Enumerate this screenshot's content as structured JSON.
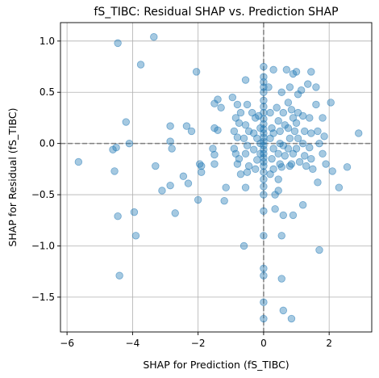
{
  "chart_data": {
    "type": "scatter",
    "title": "fS_TIBC: Residual SHAP vs. Prediction SHAP",
    "xlabel": "SHAP for Prediction (fS_TIBC)",
    "ylabel": "SHAP for Residual (fS_TIBC)",
    "xlim": [
      -6.2,
      3.3
    ],
    "ylim": [
      -1.84,
      1.18
    ],
    "xticks": [
      -6,
      -4,
      -2,
      0,
      2
    ],
    "yticks": [
      -1.5,
      -1.0,
      -0.5,
      0.0,
      0.5,
      1.0
    ],
    "xtick_labels": [
      "−6",
      "−4",
      "−2",
      "0",
      "2"
    ],
    "ytick_labels": [
      "−1.5",
      "−1.0",
      "−0.5",
      "0.0",
      "0.5",
      "1.0"
    ],
    "grid": true,
    "reference_lines": {
      "x": 0,
      "y": 0,
      "style": "dashed",
      "color": "#7f7f7f"
    },
    "marker_color": "#1f77b4",
    "marker_alpha": 0.4,
    "points": [
      [
        -5.65,
        -0.18
      ],
      [
        -4.45,
        0.98
      ],
      [
        -3.35,
        1.04
      ],
      [
        -3.75,
        0.77
      ],
      [
        -4.2,
        0.21
      ],
      [
        -4.6,
        -0.06
      ],
      [
        -4.5,
        -0.04
      ],
      [
        -4.1,
        0.0
      ],
      [
        -4.55,
        -0.27
      ],
      [
        -4.45,
        -0.71
      ],
      [
        -3.95,
        -0.67
      ],
      [
        -3.9,
        -0.9
      ],
      [
        -4.4,
        -1.29
      ],
      [
        -3.3,
        -0.22
      ],
      [
        -3.1,
        -0.46
      ],
      [
        -2.85,
        0.17
      ],
      [
        -2.85,
        0.02
      ],
      [
        -2.8,
        -0.05
      ],
      [
        -2.85,
        -0.41
      ],
      [
        -2.7,
        -0.68
      ],
      [
        -2.45,
        -0.32
      ],
      [
        -2.35,
        0.17
      ],
      [
        -2.2,
        0.12
      ],
      [
        -2.3,
        -0.39
      ],
      [
        -2.05,
        0.7
      ],
      [
        -2.0,
        -0.55
      ],
      [
        -1.95,
        -0.2
      ],
      [
        -1.9,
        -0.22
      ],
      [
        -1.9,
        -0.28
      ],
      [
        -1.5,
        0.39
      ],
      [
        -1.4,
        0.43
      ],
      [
        -1.5,
        0.15
      ],
      [
        -1.4,
        0.13
      ],
      [
        -1.55,
        -0.05
      ],
      [
        -1.5,
        -0.11
      ],
      [
        -1.5,
        -0.2
      ],
      [
        -1.3,
        0.35
      ],
      [
        -1.15,
        -0.43
      ],
      [
        -1.2,
        -0.56
      ],
      [
        -0.95,
        0.45
      ],
      [
        -0.8,
        0.38
      ],
      [
        -0.7,
        0.3
      ],
      [
        -0.85,
        0.25
      ],
      [
        -0.75,
        0.2
      ],
      [
        -0.9,
        0.12
      ],
      [
        -0.8,
        0.06
      ],
      [
        -0.9,
        -0.05
      ],
      [
        -0.85,
        -0.1
      ],
      [
        -0.75,
        -0.15
      ],
      [
        -0.8,
        -0.2
      ],
      [
        -0.7,
        -0.3
      ],
      [
        -0.55,
        0.62
      ],
      [
        -0.5,
        0.38
      ],
      [
        -0.55,
        0.18
      ],
      [
        -0.45,
        0.12
      ],
      [
        -0.6,
        0.05
      ],
      [
        -0.5,
        -0.02
      ],
      [
        -0.55,
        -0.1
      ],
      [
        -0.45,
        -0.22
      ],
      [
        -0.5,
        -0.28
      ],
      [
        -0.55,
        -0.43
      ],
      [
        -0.6,
        -1.0
      ],
      [
        -0.35,
        0.3
      ],
      [
        -0.25,
        0.25
      ],
      [
        -0.3,
        0.1
      ],
      [
        -0.2,
        0.05
      ],
      [
        -0.3,
        -0.06
      ],
      [
        -0.2,
        -0.16
      ],
      [
        -0.25,
        -0.25
      ],
      [
        -0.1,
        0.15
      ],
      [
        -0.1,
        0.0
      ],
      [
        -0.1,
        -0.1
      ],
      [
        0.0,
        0.75
      ],
      [
        0.0,
        0.65
      ],
      [
        0.0,
        0.6
      ],
      [
        0.0,
        0.55
      ],
      [
        0.0,
        0.5
      ],
      [
        0.0,
        0.42
      ],
      [
        0.0,
        0.36
      ],
      [
        0.0,
        0.3
      ],
      [
        0.0,
        0.24
      ],
      [
        0.0,
        0.19
      ],
      [
        0.0,
        0.14
      ],
      [
        0.0,
        0.1
      ],
      [
        0.0,
        0.06
      ],
      [
        0.0,
        0.02
      ],
      [
        0.0,
        -0.02
      ],
      [
        0.0,
        -0.06
      ],
      [
        0.0,
        -0.1
      ],
      [
        0.0,
        -0.14
      ],
      [
        0.0,
        -0.18
      ],
      [
        0.0,
        -0.22
      ],
      [
        0.0,
        -0.28
      ],
      [
        0.0,
        -0.35
      ],
      [
        0.0,
        -0.42
      ],
      [
        0.0,
        -0.5
      ],
      [
        0.0,
        -0.66
      ],
      [
        0.0,
        -0.9
      ],
      [
        0.0,
        -1.22
      ],
      [
        0.0,
        -1.29
      ],
      [
        0.0,
        -1.55
      ],
      [
        0.0,
        -1.71
      ],
      [
        0.3,
        0.72
      ],
      [
        0.15,
        0.55
      ],
      [
        0.2,
        0.3
      ],
      [
        0.25,
        0.15
      ],
      [
        0.2,
        0.05
      ],
      [
        0.3,
        -0.05
      ],
      [
        0.25,
        -0.15
      ],
      [
        0.3,
        -0.25
      ],
      [
        0.35,
        -0.5
      ],
      [
        0.45,
        -0.46
      ],
      [
        0.3,
        0.1
      ],
      [
        0.35,
        -0.64
      ],
      [
        0.4,
        0.35
      ],
      [
        0.45,
        0.22
      ],
      [
        0.5,
        0.12
      ],
      [
        0.5,
        0.0
      ],
      [
        0.45,
        -0.1
      ],
      [
        0.5,
        -0.2
      ],
      [
        0.45,
        -0.35
      ],
      [
        0.55,
        0.5
      ],
      [
        0.6,
        0.3
      ],
      [
        0.65,
        0.18
      ],
      [
        0.6,
        -0.02
      ],
      [
        0.65,
        -0.12
      ],
      [
        0.55,
        -0.23
      ],
      [
        0.6,
        -0.7
      ],
      [
        0.55,
        -0.9
      ],
      [
        0.55,
        -1.32
      ],
      [
        0.7,
        0.72
      ],
      [
        0.75,
        0.4
      ],
      [
        0.8,
        0.55
      ],
      [
        0.75,
        0.15
      ],
      [
        0.8,
        0.05
      ],
      [
        0.75,
        -0.05
      ],
      [
        0.8,
        -0.22
      ],
      [
        0.85,
        0.33
      ],
      [
        0.9,
        0.68
      ],
      [
        0.9,
        0.25
      ],
      [
        0.95,
        0.12
      ],
      [
        0.9,
        -0.1
      ],
      [
        0.85,
        -0.2
      ],
      [
        0.9,
        -0.7
      ],
      [
        0.85,
        -1.71
      ],
      [
        1.0,
        0.7
      ],
      [
        1.05,
        0.48
      ],
      [
        1.05,
        0.3
      ],
      [
        1.0,
        0.2
      ],
      [
        1.05,
        0.05
      ],
      [
        1.0,
        -0.05
      ],
      [
        1.1,
        -0.18
      ],
      [
        1.15,
        0.52
      ],
      [
        1.2,
        0.27
      ],
      [
        1.25,
        0.12
      ],
      [
        1.2,
        0.0
      ],
      [
        1.25,
        -0.12
      ],
      [
        1.3,
        -0.22
      ],
      [
        1.2,
        -0.6
      ],
      [
        1.35,
        0.58
      ],
      [
        1.45,
        0.7
      ],
      [
        1.4,
        0.25
      ],
      [
        1.45,
        0.1
      ],
      [
        1.4,
        -0.04
      ],
      [
        1.45,
        -0.15
      ],
      [
        1.5,
        -0.25
      ],
      [
        1.6,
        0.55
      ],
      [
        1.6,
        0.38
      ],
      [
        1.65,
        0.12
      ],
      [
        1.7,
        0.0
      ],
      [
        1.65,
        -0.38
      ],
      [
        1.7,
        -1.04
      ],
      [
        1.8,
        0.25
      ],
      [
        1.85,
        0.07
      ],
      [
        1.8,
        -0.1
      ],
      [
        1.9,
        -0.2
      ],
      [
        2.05,
        0.4
      ],
      [
        2.1,
        -0.27
      ],
      [
        2.3,
        -0.43
      ],
      [
        2.55,
        -0.23
      ],
      [
        2.9,
        0.1
      ],
      [
        0.6,
        -1.63
      ],
      [
        0.2,
        -0.3
      ],
      [
        -0.15,
        0.27
      ]
    ]
  }
}
